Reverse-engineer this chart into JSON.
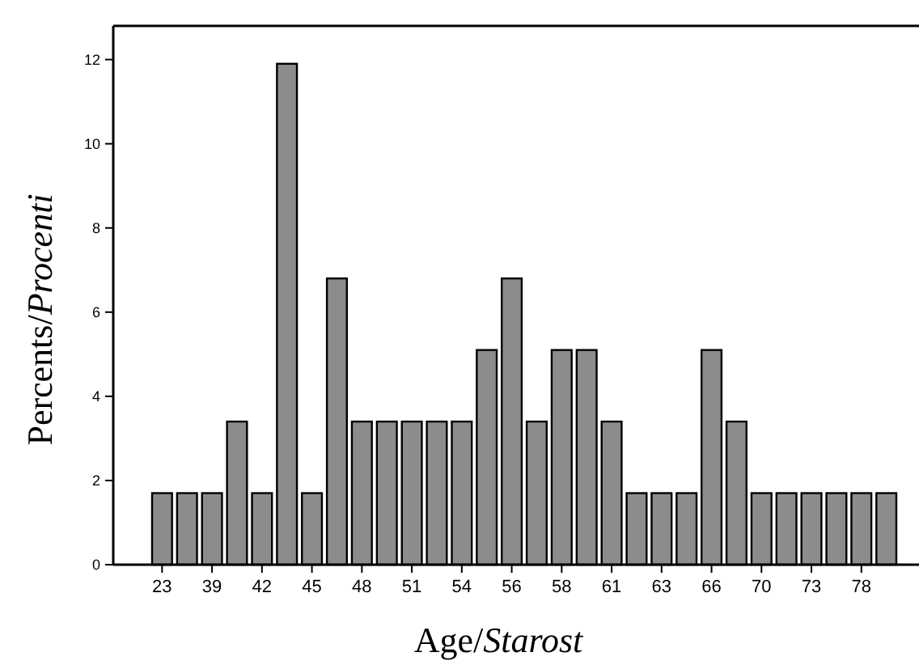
{
  "chart_data": {
    "type": "bar",
    "xlabel": "Age/Starost",
    "ylabel": "Percents/Procenti",
    "categories": [
      "23",
      null,
      "39",
      null,
      "42",
      null,
      "45",
      null,
      "48",
      null,
      "51",
      null,
      "54",
      null,
      "56",
      null,
      "58",
      null,
      "61",
      null,
      "63",
      null,
      "66",
      null,
      "70",
      null,
      "73",
      null,
      "78",
      null
    ],
    "values": [
      1.7,
      1.7,
      1.7,
      3.4,
      1.7,
      11.9,
      1.7,
      6.8,
      3.4,
      3.4,
      3.4,
      3.4,
      3.4,
      5.1,
      6.8,
      3.4,
      5.1,
      5.1,
      3.4,
      1.7,
      1.7,
      1.7,
      5.1,
      3.4,
      1.7,
      1.7,
      1.7,
      1.7,
      1.7,
      1.7
    ],
    "color": "#8c8c8c",
    "ylim": [
      0,
      12.8
    ],
    "yticks": [
      0,
      2,
      4,
      6,
      8,
      10,
      12
    ],
    "grid": false
  }
}
